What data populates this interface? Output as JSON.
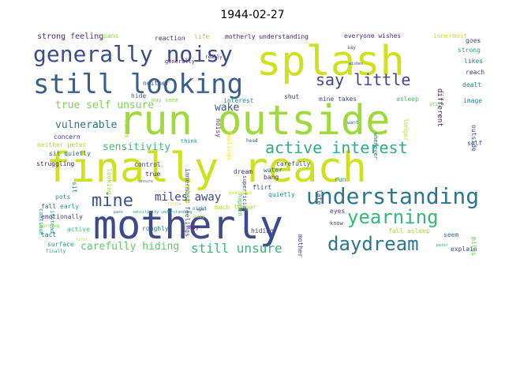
{
  "chart_data": {
    "type": "wordcloud",
    "title": "1944-02-27",
    "words": [
      {
        "text": "run outside",
        "color": "#9fd93c"
      },
      {
        "text": "finally reach",
        "color": "#cde11d"
      },
      {
        "text": "motherly",
        "color": "#3e4b89"
      },
      {
        "text": "splash",
        "color": "#cfe11c"
      },
      {
        "text": "still looking",
        "color": "#3b5f8c"
      },
      {
        "text": "generally noisy",
        "color": "#3b4d8a"
      },
      {
        "text": "understanding",
        "color": "#2b778e"
      },
      {
        "text": "active interest",
        "color": "#2aaf7f"
      },
      {
        "text": "yearning",
        "color": "#38b877"
      },
      {
        "text": "daydream",
        "color": "#2b788e"
      },
      {
        "text": "say little",
        "color": "#414487"
      },
      {
        "text": "mine",
        "color": "#3b528b"
      },
      {
        "text": "still unsure",
        "color": "#35b779"
      },
      {
        "text": "miles away",
        "color": "#3f4788"
      },
      {
        "text": "true self unsure",
        "color": "#7ad151"
      },
      {
        "text": "vulnerable",
        "color": "#2a788e"
      },
      {
        "text": "carefully hiding",
        "color": "#5ec962"
      },
      {
        "text": "sensitivity",
        "color": "#3fbc73"
      },
      {
        "text": "wake",
        "color": "#3b528b"
      },
      {
        "text": "strong feeling",
        "color": "#472d7b"
      },
      {
        "text": "pans",
        "color": "#8fd744"
      },
      {
        "text": "reaction",
        "color": "#46337e"
      },
      {
        "text": "life",
        "color": "#95d840"
      },
      {
        "text": "motherly understanding",
        "color": "#482173"
      },
      {
        "text": "everyone wishes",
        "color": "#46307e"
      },
      {
        "text": "innermost",
        "color": "#d2e21b"
      },
      {
        "text": "different",
        "color": "#471063"
      },
      {
        "text": "goes",
        "color": "#3e4a89"
      },
      {
        "text": "strong",
        "color": "#22a884"
      },
      {
        "text": "likes",
        "color": "#2a788e"
      },
      {
        "text": "reach",
        "color": "#443983"
      },
      {
        "text": "dealt",
        "color": "#24868e"
      },
      {
        "text": "image",
        "color": "#25838e"
      },
      {
        "text": "outside",
        "color": "#3e4989"
      },
      {
        "text": "self",
        "color": "#3b528b"
      },
      {
        "text": "concern",
        "color": "#443983"
      },
      {
        "text": "neither peter",
        "color": "#a5db36"
      },
      {
        "text": "sit quietly",
        "color": "#31688e"
      },
      {
        "text": "struggling",
        "color": "#481a6c"
      },
      {
        "text": "continue",
        "color": "#1f9a8a"
      },
      {
        "text": "instead",
        "color": "#1fa188"
      },
      {
        "text": "sit",
        "color": "#277f8e"
      },
      {
        "text": "pots",
        "color": "#21918c"
      },
      {
        "text": "fall",
        "color": "#33638d"
      },
      {
        "text": "early",
        "color": "#1e9b8a"
      },
      {
        "text": "emotionally",
        "color": "#3e4989"
      },
      {
        "text": "morning",
        "color": "#7fd34e"
      },
      {
        "text": "tact",
        "color": "#2d708e"
      },
      {
        "text": "active",
        "color": "#3dbc74"
      },
      {
        "text": "surface",
        "color": "#22a785"
      },
      {
        "text": "finally",
        "color": "#25ab82"
      },
      {
        "text": "control",
        "color": "#433e85"
      },
      {
        "text": "true",
        "color": "#481467"
      },
      {
        "text": "roughly",
        "color": "#2c728e"
      },
      {
        "text": "may seem",
        "color": "#8fd744"
      },
      {
        "text": "hide",
        "color": "#2d708e"
      },
      {
        "text": "neither",
        "color": "#3e4a89"
      },
      {
        "text": "generally",
        "color": "#482677"
      },
      {
        "text": "interest",
        "color": "#23888e"
      },
      {
        "text": "innermost feelings",
        "color": "#3b528b"
      },
      {
        "text": "feeling",
        "color": "#b8de29"
      },
      {
        "text": "looking",
        "color": "#9bd93c"
      },
      {
        "text": "takes",
        "color": "#a0da39"
      },
      {
        "text": "think",
        "color": "#1f9e89"
      },
      {
        "text": "dream",
        "color": "#472c7a"
      },
      {
        "text": "superficial",
        "color": "#3b528b"
      },
      {
        "text": "happen",
        "color": "#5ec962"
      },
      {
        "text": "noisy",
        "color": "#46337e"
      },
      {
        "text": "really",
        "color": "#482475"
      },
      {
        "text": "feelings",
        "color": "#fde725"
      },
      {
        "text": "shut",
        "color": "#46327e"
      },
      {
        "text": "mine takes",
        "color": "#3f4788"
      },
      {
        "text": "asleep",
        "color": "#4ac16d"
      },
      {
        "text": "longer",
        "color": "#c0df25"
      },
      {
        "text": "whenever",
        "color": "#2c738e"
      },
      {
        "text": "want",
        "color": "#2e6e8e"
      },
      {
        "text": "carefully",
        "color": "#38588c"
      },
      {
        "text": "late",
        "color": "#404688"
      },
      {
        "text": "run",
        "color": "#20928c"
      },
      {
        "text": "flirt",
        "color": "#404688"
      },
      {
        "text": "bang",
        "color": "#482878"
      },
      {
        "text": "water",
        "color": "#2c728e"
      },
      {
        "text": "quietly",
        "color": "#1f958b"
      },
      {
        "text": "hiding",
        "color": "#3e4989"
      },
      {
        "text": "mother",
        "color": "#443a83"
      },
      {
        "text": "much longer",
        "color": "#b2dd2d"
      },
      {
        "text": "night",
        "color": "#31688e"
      },
      {
        "text": "eyes",
        "color": "#433e85"
      },
      {
        "text": "know",
        "color": "#3e4a89"
      },
      {
        "text": "fall asleep",
        "color": "#a8db34"
      },
      {
        "text": "seem",
        "color": "#2d718e"
      },
      {
        "text": "miles",
        "color": "#6ccd5a"
      },
      {
        "text": "explain",
        "color": "#3b528b"
      },
      {
        "text": "may",
        "color": "#482878"
      },
      {
        "text": "everyone",
        "color": "#c2df23"
      },
      {
        "text": "head",
        "color": "#3a548c"
      },
      {
        "text": "say",
        "color": "#3e4989"
      },
      {
        "text": "still",
        "color": "#5ec962"
      },
      {
        "text": "little",
        "color": "#bddf26"
      },
      {
        "text": "pass",
        "color": "#2a788e"
      },
      {
        "text": "first",
        "color": "#b5de2b"
      },
      {
        "text": "ever",
        "color": "#31688e"
      },
      {
        "text": "peter",
        "color": "#28ae80"
      },
      {
        "text": "wishes",
        "color": "#3e4a89"
      },
      {
        "text": "away",
        "color": "#b2dd2d"
      },
      {
        "text": "unsure",
        "color": "#2e6f8e"
      },
      {
        "text": "sensitivity understanding",
        "color": "#20a486"
      }
    ]
  }
}
